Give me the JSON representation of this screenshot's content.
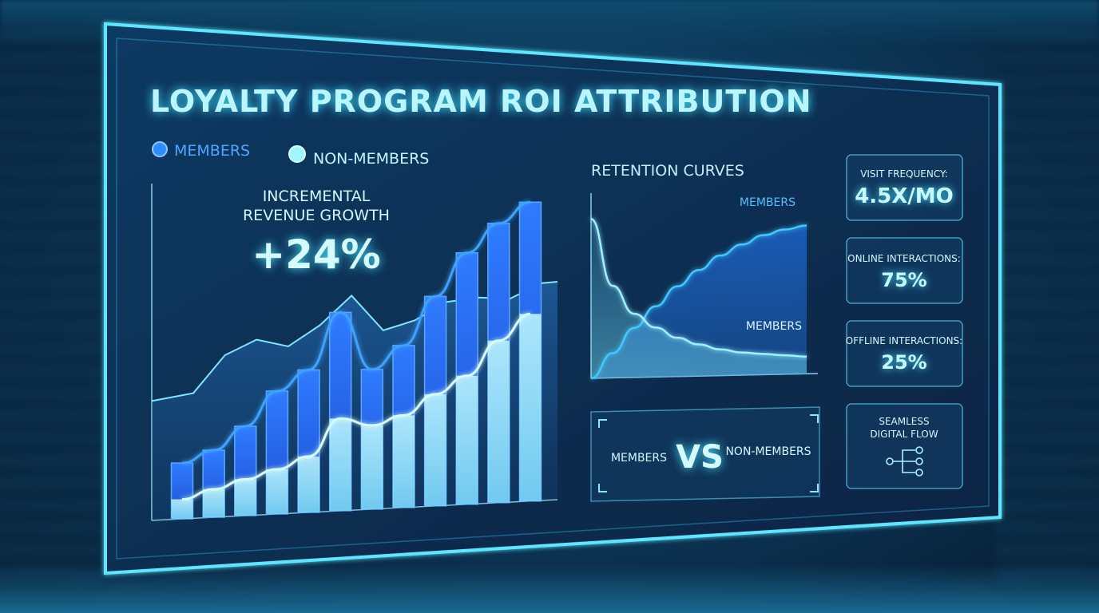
{
  "title": "LOYALTY PROGRAM ROI ATTRIBUTION",
  "legend": [
    {
      "label": "MEMBERS",
      "color": "#2f8cff"
    },
    {
      "label": "NON-MEMBERS",
      "color": "#8ff3ff"
    }
  ],
  "headline": {
    "line1": "INCREMENTAL",
    "line2": "REVENUE GROWTH",
    "value": "+24%"
  },
  "chart_data": [
    {
      "type": "bar",
      "title": "",
      "series": [
        {
          "name": "MEMBERS",
          "values": [
            20,
            24,
            32,
            44,
            51,
            71,
            50,
            58,
            75,
            90,
            100,
            107
          ]
        },
        {
          "name": "NON-MEMBERS",
          "values": [
            7,
            10,
            13,
            16,
            20,
            33,
            30,
            33,
            40,
            46,
            58,
            67
          ]
        }
      ],
      "overlay_line_values": [
        45,
        58,
        63,
        60,
        67,
        77,
        64,
        67,
        73,
        74,
        73,
        78
      ],
      "ylim": [
        0,
        120
      ]
    },
    {
      "type": "line",
      "title": "RETENTION CURVES",
      "x": [
        0,
        1,
        2,
        3,
        4,
        5,
        6,
        7,
        8,
        9,
        10
      ],
      "series": [
        {
          "name": "MEMBERS",
          "values": [
            0,
            14,
            28,
            40,
            51,
            60,
            68,
            74,
            79,
            82,
            84
          ]
        },
        {
          "name": "MEMBERS",
          "values": [
            90,
            52,
            36,
            28,
            22,
            18,
            15,
            13,
            12,
            11,
            10
          ]
        }
      ],
      "ylim": [
        0,
        100
      ]
    }
  ],
  "comparison": {
    "left": "MEMBERS",
    "middle": "VS",
    "right": "NON-MEMBERS"
  },
  "kpis": [
    {
      "label": "VISIT FREQUENCY:",
      "value": "4.5X/MO"
    },
    {
      "label": "ONLINE INTERACTIONS:",
      "value": "75%"
    },
    {
      "label": "OFFLINE INTERACTIONS:",
      "value": "25%"
    },
    {
      "label": "SEAMLESS",
      "label2": "DIGITAL FLOW",
      "icon": "flow-branch-icon"
    }
  ],
  "colors": {
    "panel": "#0b2c4f",
    "border": "#5fe6ff",
    "member_bar": "#2f6fe6",
    "nonmember_bar": "#9df2ff",
    "curve": "#40d6ff"
  }
}
